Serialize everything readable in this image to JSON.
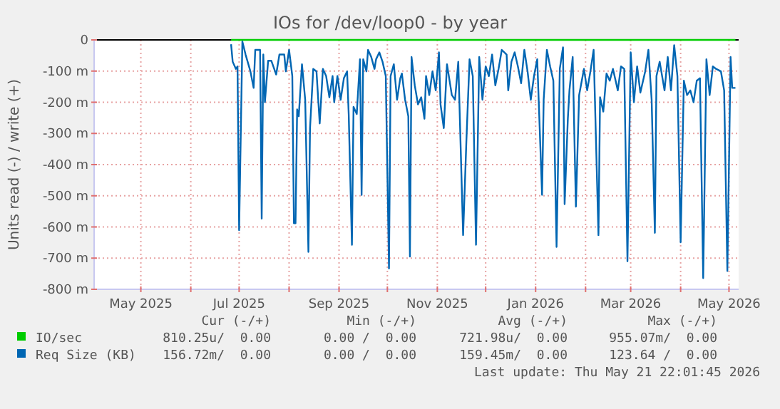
{
  "chart_data": {
    "type": "line",
    "title": "IOs for /dev/loop0 - by year",
    "ylabel": "Units read (-) / write (+)",
    "xlim": [
      "2025-04-02",
      "2026-05-07"
    ],
    "xticks": [
      {
        "value": "2025-05-01",
        "label": "May 2025"
      },
      {
        "value": "2025-06-01",
        "label": null
      },
      {
        "value": "2025-07-01",
        "label": "Jul 2025"
      },
      {
        "value": "2025-08-01",
        "label": null
      },
      {
        "value": "2025-09-01",
        "label": "Sep 2025"
      },
      {
        "value": "2025-10-01",
        "label": null
      },
      {
        "value": "2025-11-01",
        "label": "Nov 2025"
      },
      {
        "value": "2025-12-01",
        "label": null
      },
      {
        "value": "2026-01-01",
        "label": "Jan 2026"
      },
      {
        "value": "2026-02-01",
        "label": null
      },
      {
        "value": "2026-03-01",
        "label": "Mar 2026"
      },
      {
        "value": "2026-04-01",
        "label": null
      },
      {
        "value": "2026-05-01",
        "label": "May 2026"
      }
    ],
    "ylim": [
      -800,
      0
    ],
    "yticks": [
      {
        "value": -800,
        "label": "-800 m"
      },
      {
        "value": -700,
        "label": "-700 m"
      },
      {
        "value": -600,
        "label": "-600 m"
      },
      {
        "value": -500,
        "label": "-500 m"
      },
      {
        "value": -400,
        "label": "-400 m"
      },
      {
        "value": -300,
        "label": "-300 m"
      },
      {
        "value": -200,
        "label": "-200 m"
      },
      {
        "value": -100,
        "label": "-100 m"
      },
      0
    ],
    "grid": true,
    "legend": "bottom",
    "ref_lines": [
      {
        "axis": "y",
        "value": 0,
        "color": "#000000"
      }
    ],
    "series": [
      {
        "name": "IO/sec",
        "color": "#00cc00",
        "x": [
          "2025-06-26",
          "2026-05-05"
        ],
        "values": [
          0,
          0
        ]
      },
      {
        "name": "Req Size (KB)",
        "color": "#0066b3",
        "x": [
          "2025-06-26",
          "2025-06-27",
          "2025-06-29",
          "2025-06-30",
          "2025-07-01",
          "2025-07-03",
          "2025-07-05",
          "2025-07-08",
          "2025-07-10",
          "2025-07-11",
          "2025-07-14",
          "2025-07-15",
          "2025-07-16",
          "2025-07-17",
          "2025-07-19",
          "2025-07-21",
          "2025-07-24",
          "2025-07-26",
          "2025-07-29",
          "2025-07-30",
          "2025-08-01",
          "2025-08-03",
          "2025-08-04",
          "2025-08-05",
          "2025-08-06",
          "2025-08-07",
          "2025-08-09",
          "2025-08-11",
          "2025-08-13",
          "2025-08-14",
          "2025-08-16",
          "2025-08-18",
          "2025-08-20",
          "2025-08-22",
          "2025-08-24",
          "2025-08-26",
          "2025-08-28",
          "2025-08-29",
          "2025-08-31",
          "2025-09-02",
          "2025-09-04",
          "2025-09-06",
          "2025-09-07",
          "2025-09-09",
          "2025-09-10",
          "2025-09-12",
          "2025-09-14",
          "2025-09-15",
          "2025-09-16",
          "2025-09-18",
          "2025-09-19",
          "2025-09-21",
          "2025-09-23",
          "2025-09-24",
          "2025-09-26",
          "2025-09-28",
          "2025-09-30",
          "2025-10-02",
          "2025-10-03",
          "2025-10-05",
          "2025-10-07",
          "2025-10-09",
          "2025-10-10",
          "2025-10-12",
          "2025-10-14",
          "2025-10-15",
          "2025-10-16",
          "2025-10-18",
          "2025-10-20",
          "2025-10-22",
          "2025-10-24",
          "2025-10-25",
          "2025-10-27",
          "2025-10-29",
          "2025-10-31",
          "2025-11-02",
          "2025-11-03",
          "2025-11-05",
          "2025-11-07",
          "2025-11-10",
          "2025-11-12",
          "2025-11-14",
          "2025-11-17",
          "2025-11-19",
          "2025-11-21",
          "2025-11-23",
          "2025-11-25",
          "2025-11-27",
          "2025-11-29",
          "2025-12-01",
          "2025-12-03",
          "2025-12-05",
          "2025-12-07",
          "2025-12-09",
          "2025-12-11",
          "2025-12-14",
          "2025-12-15",
          "2025-12-17",
          "2025-12-19",
          "2025-12-21",
          "2025-12-23",
          "2025-12-25",
          "2025-12-27",
          "2025-12-29",
          "2025-12-31",
          "2026-01-02",
          "2026-01-05",
          "2026-01-06",
          "2026-01-08",
          "2026-01-10",
          "2026-01-12",
          "2026-01-14",
          "2026-01-16",
          "2026-01-18",
          "2026-01-19",
          "2026-01-21",
          "2026-01-22",
          "2026-01-24",
          "2026-01-26",
          "2026-01-28",
          "2026-01-31",
          "2026-02-02",
          "2026-02-04",
          "2026-02-06",
          "2026-02-09",
          "2026-02-10",
          "2026-02-12",
          "2026-02-14",
          "2026-02-16",
          "2026-02-18",
          "2026-02-21",
          "2026-02-23",
          "2026-02-25",
          "2026-02-27",
          "2026-03-01",
          "2026-03-03",
          "2026-03-05",
          "2026-03-07",
          "2026-03-10",
          "2026-03-12",
          "2026-03-14",
          "2026-03-16",
          "2026-03-17",
          "2026-03-19",
          "2026-03-22",
          "2026-03-24",
          "2026-03-26",
          "2026-03-28",
          "2026-03-30",
          "2026-04-01",
          "2026-04-03",
          "2026-04-05",
          "2026-04-07",
          "2026-04-09",
          "2026-04-11",
          "2026-04-13",
          "2026-04-15",
          "2026-04-17",
          "2026-04-19",
          "2026-04-21",
          "2026-04-23",
          "2026-04-26",
          "2026-04-28",
          "2026-04-30",
          "2026-05-02",
          "2026-05-03",
          "2026-05-05"
        ],
        "values": [
          -14,
          -70,
          -93,
          -85,
          -610,
          -5,
          -47,
          -101,
          -154,
          -32,
          -32,
          -573,
          -47,
          -200,
          -67,
          -67,
          -111,
          -47,
          -47,
          -101,
          -32,
          -116,
          -588,
          -588,
          -223,
          -245,
          -78,
          -192,
          -680,
          -283,
          -93,
          -101,
          -268,
          -93,
          -116,
          -184,
          -116,
          -200,
          -116,
          -192,
          -123,
          -101,
          -238,
          -657,
          -215,
          -238,
          -62,
          -497,
          -62,
          -101,
          -32,
          -55,
          -93,
          -62,
          -40,
          -70,
          -116,
          -733,
          -116,
          -78,
          -192,
          -123,
          -108,
          -192,
          -245,
          -695,
          -55,
          -146,
          -207,
          -184,
          -253,
          -116,
          -177,
          -101,
          -162,
          -40,
          -207,
          -283,
          -78,
          -177,
          -192,
          -70,
          -626,
          -329,
          -62,
          -116,
          -657,
          -55,
          -192,
          -85,
          -116,
          -47,
          -146,
          -93,
          -32,
          -47,
          -162,
          -70,
          -40,
          -85,
          -139,
          -32,
          -101,
          -192,
          -116,
          -62,
          -497,
          -192,
          -32,
          -85,
          -131,
          -664,
          -93,
          -24,
          -527,
          -253,
          -162,
          -55,
          -535,
          -177,
          -93,
          -162,
          -101,
          -32,
          -626,
          -184,
          -230,
          -108,
          -131,
          -93,
          -162,
          -85,
          -93,
          -710,
          -40,
          -200,
          -85,
          -169,
          -101,
          -32,
          -192,
          -619,
          -116,
          -70,
          -162,
          -55,
          -162,
          -17,
          -116,
          -649,
          -131,
          -177,
          -162,
          -200,
          -131,
          -123,
          -764,
          -62,
          -177,
          -85,
          -93,
          -101,
          -162,
          -741,
          -55,
          -154,
          -154
        ]
      }
    ],
    "annotations": [
      "Cur (-/+)",
      "Min (-/+)",
      "Avg (-/+)",
      "Max (-/+)",
      "810.25u/  0.00",
      "0.00 /  0.00",
      "721.98u/  0.00",
      "955.07m/  0.00",
      "156.72m/  0.00",
      "0.00 /  0.00",
      "159.45m/  0.00",
      "123.64 /  0.00",
      "Last update: Thu May 21 22:01:45 2026"
    ]
  }
}
